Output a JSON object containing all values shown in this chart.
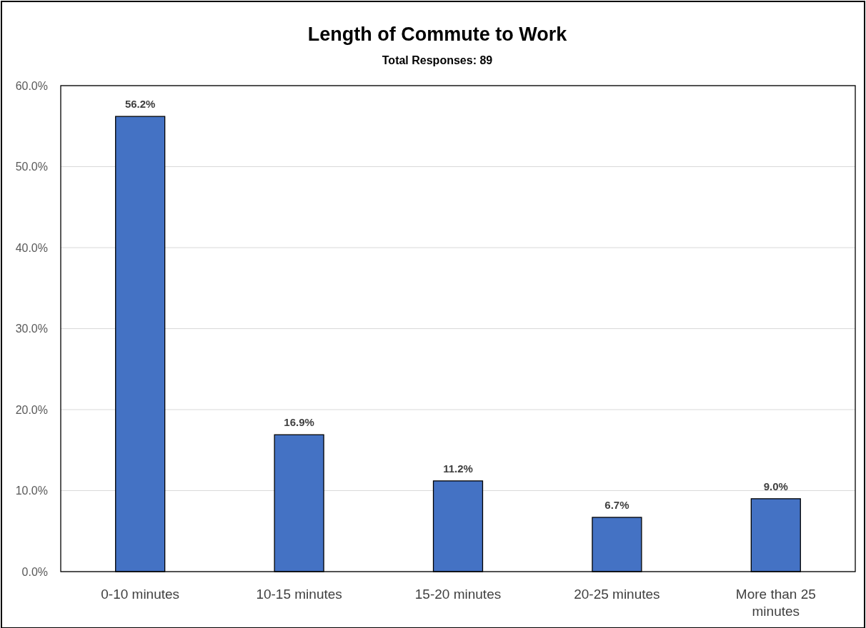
{
  "chart_data": {
    "type": "bar",
    "title": "Length of Commute to Work",
    "subtitle": "Total Responses: 89",
    "categories": [
      "0-10 minutes",
      "10-15 minutes",
      "15-20 minutes",
      "20-25 minutes",
      "More than 25 minutes"
    ],
    "values": [
      56.2,
      16.9,
      11.2,
      6.7,
      9.0
    ],
    "value_labels": [
      "56.2%",
      "16.9%",
      "11.2%",
      "6.7%",
      "9.0%"
    ],
    "color": "#4472c4",
    "ylim": [
      0,
      60
    ],
    "yticks": [
      {
        "value": 0,
        "label": "0.0%"
      },
      {
        "value": 10,
        "label": "10.0%"
      },
      {
        "value": 20,
        "label": "20.0%"
      },
      {
        "value": 30,
        "label": "30.0%"
      },
      {
        "value": 40,
        "label": "40.0%"
      },
      {
        "value": 50,
        "label": "50.0%"
      },
      {
        "value": 60,
        "label": "60.0%"
      }
    ],
    "grid": "y"
  }
}
